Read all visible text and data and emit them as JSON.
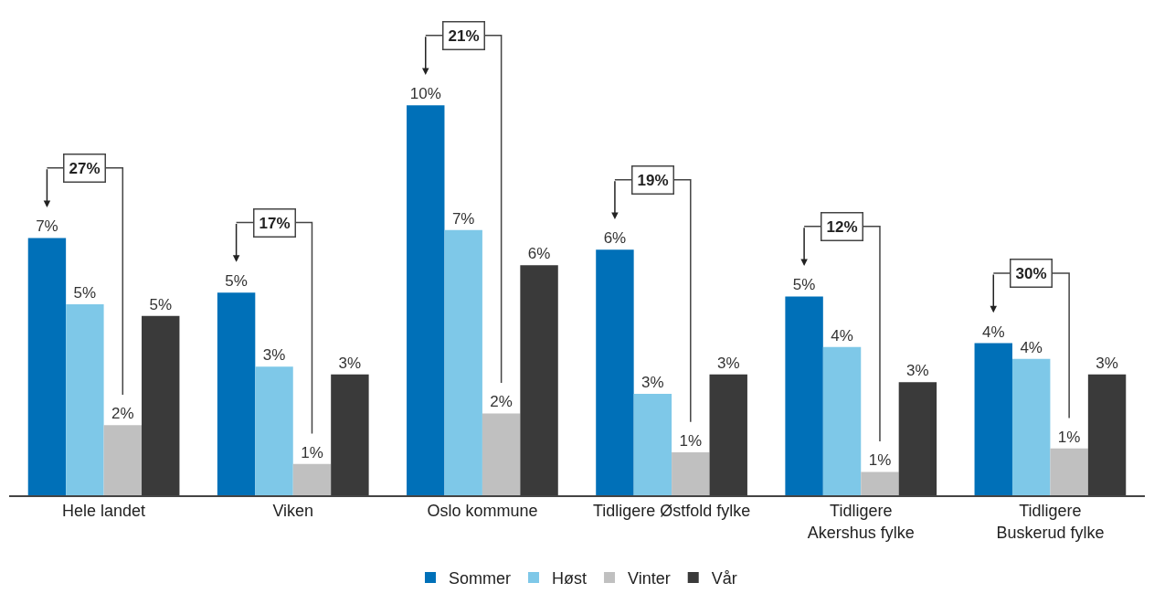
{
  "chart_data": {
    "type": "bar",
    "categories": [
      "Hele landet",
      "Viken",
      "Oslo kommune",
      "Tidligere Østfold fylke",
      "Tidligere\nAkershus fylke",
      "Tidligere\nBuskerud fylke"
    ],
    "series": [
      {
        "name": "Sommer",
        "color": "#0070b8",
        "values": [
          6.6,
          5.2,
          10.0,
          6.3,
          5.1,
          3.9
        ],
        "value_labels": [
          "7%",
          "5%",
          "10%",
          "6%",
          "5%",
          "4%"
        ]
      },
      {
        "name": "Høst",
        "color": "#7ec8e8",
        "values": [
          4.9,
          3.3,
          6.8,
          2.6,
          3.8,
          3.5
        ],
        "value_labels": [
          "5%",
          "3%",
          "7%",
          "3%",
          "4%",
          "4%"
        ]
      },
      {
        "name": "Vinter",
        "color": "#c0c0c0",
        "values": [
          1.8,
          0.8,
          2.1,
          1.1,
          0.6,
          1.2
        ],
        "value_labels": [
          "2%",
          "1%",
          "2%",
          "1%",
          "1%",
          "1%"
        ]
      },
      {
        "name": "Vår",
        "color": "#3a3a3a",
        "values": [
          4.6,
          3.1,
          5.9,
          3.1,
          2.9,
          3.1
        ],
        "value_labels": [
          "5%",
          "3%",
          "6%",
          "3%",
          "3%",
          "3%"
        ]
      }
    ],
    "annotations": [
      "27%",
      "17%",
      "21%",
      "19%",
      "12%",
      "30%"
    ],
    "legend": "bottom"
  }
}
